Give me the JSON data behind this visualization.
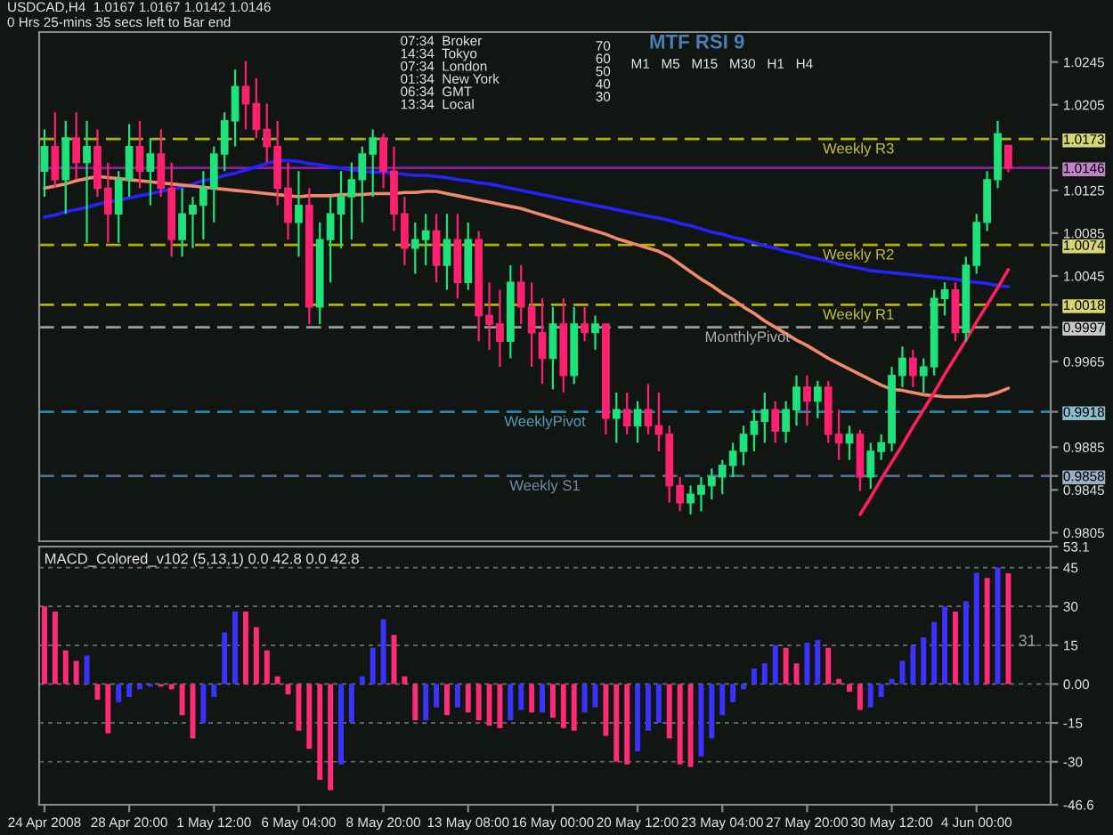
{
  "chart_data": [
    {
      "type": "candlestick",
      "title": "USDCAD,H4  1.0167 1.0167 1.0142 1.0146",
      "subtitle": "0 Hrs 25-mins 35 secs left to Bar end",
      "categories": [
        null,
        null,
        null,
        null,
        null,
        null,
        null,
        null,
        null,
        null,
        null,
        null,
        null,
        null,
        null,
        null,
        null,
        null,
        null,
        null,
        null,
        null,
        null,
        null,
        null,
        null,
        null,
        null,
        null,
        null,
        null,
        null,
        null,
        null,
        null,
        null,
        null,
        null,
        null,
        null,
        null,
        null,
        null,
        null,
        null,
        null,
        null,
        null,
        null,
        null,
        null,
        null,
        null,
        null,
        null,
        null,
        null,
        null,
        null,
        null,
        null,
        null,
        null,
        null,
        null,
        null,
        null,
        null,
        null,
        null,
        null,
        null,
        null,
        null,
        null,
        null,
        null,
        null,
        null,
        null,
        null,
        null,
        null,
        null,
        null,
        null,
        null,
        null,
        null,
        null,
        null,
        null
      ],
      "ohlc": [
        [
          1.0143,
          1.0182,
          1.0119,
          1.0166
        ],
        [
          1.0166,
          1.0198,
          1.0127,
          1.0135
        ],
        [
          1.0135,
          1.019,
          1.0103,
          1.0174
        ],
        [
          1.0174,
          1.0198,
          1.0135,
          1.0151
        ],
        [
          1.0151,
          1.019,
          1.0076,
          1.0166
        ],
        [
          1.0166,
          1.0182,
          1.0119,
          1.0127
        ],
        [
          1.0127,
          1.0151,
          1.0076,
          1.0103
        ],
        [
          1.0103,
          1.0143,
          1.0076,
          1.0135
        ],
        [
          1.0135,
          1.0187,
          1.0119,
          1.0166
        ],
        [
          1.0166,
          1.019,
          1.0127,
          1.0143
        ],
        [
          1.0143,
          1.0174,
          1.0111,
          1.0159
        ],
        [
          1.0159,
          1.0182,
          1.0119,
          1.0127
        ],
        [
          1.0127,
          1.0151,
          1.0063,
          1.0079
        ],
        [
          1.0079,
          1.0127,
          1.0063,
          1.0103
        ],
        [
          1.0103,
          1.0119,
          1.0071,
          1.0111
        ],
        [
          1.0111,
          1.0143,
          1.0079,
          1.0127
        ],
        [
          1.0127,
          1.0166,
          1.0095,
          1.0159
        ],
        [
          1.0159,
          1.0198,
          1.0143,
          1.019
        ],
        [
          1.019,
          1.0238,
          1.0166,
          1.0222
        ],
        [
          1.0222,
          1.0246,
          1.0182,
          1.0206
        ],
        [
          1.0206,
          1.023,
          1.0174,
          1.0182
        ],
        [
          1.0182,
          1.0206,
          1.0151,
          1.0166
        ],
        [
          1.0166,
          1.019,
          1.0111,
          1.0127
        ],
        [
          1.0127,
          1.0151,
          1.0079,
          1.0095
        ],
        [
          1.0095,
          1.0143,
          1.0063,
          1.0111
        ],
        [
          1.0111,
          1.0127,
          1.0,
          1.0016
        ],
        [
          1.0016,
          1.0095,
          1.0,
          1.0079
        ],
        [
          1.0079,
          1.0119,
          1.0039,
          1.0103
        ],
        [
          1.0103,
          1.0143,
          1.0071,
          1.0119
        ],
        [
          1.0119,
          1.0151,
          1.0079,
          1.0135
        ],
        [
          1.0135,
          1.0166,
          1.0095,
          1.0159
        ],
        [
          1.0159,
          1.0182,
          1.0119,
          1.0174
        ],
        [
          1.0174,
          1.0178,
          1.0127,
          1.0143
        ],
        [
          1.0143,
          1.0166,
          1.0087,
          1.0103
        ],
        [
          1.0103,
          1.0119,
          1.0055,
          1.0071
        ],
        [
          1.0071,
          1.0095,
          1.0047,
          1.0079
        ],
        [
          1.0079,
          1.0103,
          1.0055,
          1.0087
        ],
        [
          1.0087,
          1.0103,
          1.0039,
          1.0055
        ],
        [
          1.0055,
          1.0103,
          1.0032,
          1.0079
        ],
        [
          1.0079,
          1.0103,
          1.0024,
          1.0039
        ],
        [
          1.0039,
          1.0095,
          1.0032,
          1.0079
        ],
        [
          1.0079,
          1.0087,
          0.9984,
          1.0008
        ],
        [
          1.0008,
          1.0039,
          0.9976,
          1.0
        ],
        [
          1.0,
          1.0032,
          0.996,
          0.9984
        ],
        [
          0.9984,
          1.0055,
          0.9968,
          1.0039
        ],
        [
          1.0039,
          1.0055,
          1.0,
          1.0016
        ],
        [
          1.0016,
          1.0039,
          0.996,
          0.9992
        ],
        [
          0.9992,
          1.0024,
          0.9944,
          0.9968
        ],
        [
          0.9968,
          1.0016,
          0.9939,
          1.0
        ],
        [
          1.0,
          1.0024,
          0.9936,
          0.9952
        ],
        [
          0.9952,
          1.0016,
          0.9944,
          1.0
        ],
        [
          1.0,
          1.0016,
          0.9984,
          0.9992
        ],
        [
          0.9992,
          1.0008,
          0.9976,
          1.0
        ],
        [
          1.0,
          1.0,
          0.9897,
          0.9912
        ],
        [
          0.9912,
          0.9936,
          0.9889,
          0.992
        ],
        [
          0.992,
          0.9936,
          0.9897,
          0.9905
        ],
        [
          0.9905,
          0.9928,
          0.9889,
          0.992
        ],
        [
          0.992,
          0.9944,
          0.9897,
          0.9905
        ],
        [
          0.9905,
          0.9936,
          0.9881,
          0.9897
        ],
        [
          0.9897,
          0.9905,
          0.9833,
          0.9849
        ],
        [
          0.9849,
          0.9857,
          0.9825,
          0.9833
        ],
        [
          0.9833,
          0.9849,
          0.9822,
          0.9841
        ],
        [
          0.9841,
          0.9857,
          0.9825,
          0.9849
        ],
        [
          0.9849,
          0.9865,
          0.9836,
          0.9857
        ],
        [
          0.9857,
          0.9873,
          0.9841,
          0.9868
        ],
        [
          0.9868,
          0.9889,
          0.9857,
          0.9881
        ],
        [
          0.9881,
          0.9905,
          0.9868,
          0.9897
        ],
        [
          0.9897,
          0.992,
          0.9881,
          0.9909
        ],
        [
          0.9909,
          0.9936,
          0.9889,
          0.992
        ],
        [
          0.992,
          0.9928,
          0.9889,
          0.99
        ],
        [
          0.99,
          0.9928,
          0.9889,
          0.992
        ],
        [
          0.992,
          0.9952,
          0.9905,
          0.9941
        ],
        [
          0.9941,
          0.9952,
          0.9905,
          0.9928
        ],
        [
          0.9928,
          0.9947,
          0.9912,
          0.9941
        ],
        [
          0.9941,
          0.9947,
          0.9889,
          0.9897
        ],
        [
          0.9897,
          0.992,
          0.9873,
          0.9889
        ],
        [
          0.9889,
          0.9905,
          0.9873,
          0.9897
        ],
        [
          0.9897,
          0.9901,
          0.9844,
          0.9857
        ],
        [
          0.9857,
          0.9889,
          0.9846,
          0.9881
        ],
        [
          0.9881,
          0.9897,
          0.9873,
          0.9889
        ],
        [
          0.9889,
          0.996,
          0.9881,
          0.9952
        ],
        [
          0.9952,
          0.9979,
          0.9941,
          0.9968
        ],
        [
          0.9968,
          0.9976,
          0.9941,
          0.9952
        ],
        [
          0.9952,
          0.9968,
          0.9936,
          0.996
        ],
        [
          0.996,
          1.0032,
          0.9952,
          1.0024
        ],
        [
          1.0024,
          1.0039,
          1.0008,
          1.0032
        ],
        [
          1.0032,
          1.0039,
          0.9984,
          0.9992
        ],
        [
          0.9992,
          1.0063,
          0.9984,
          1.0055
        ],
        [
          1.0055,
          1.0103,
          1.0047,
          1.0095
        ],
        [
          1.0095,
          1.0143,
          1.0087,
          1.0135
        ],
        [
          1.0135,
          1.019,
          1.0127,
          1.0178
        ],
        [
          1.0167,
          1.0167,
          1.0142,
          1.0146
        ]
      ],
      "colors": [
        "#1ee27a",
        "#ff2070",
        "#1ee27a",
        "#ff2070",
        "#1ee27a",
        "#ff2070",
        "#ff2070",
        "#1ee27a",
        "#1ee27a",
        "#ff2070",
        "#1ee27a",
        "#ff2070",
        "#ff2070",
        "#1ee27a",
        "#1ee27a",
        "#1ee27a",
        "#1ee27a",
        "#1ee27a",
        "#1ee27a",
        "#ff2070",
        "#ff2070",
        "#ff2070",
        "#ff2070",
        "#ff2070",
        "#1ee27a",
        "#ff2070",
        "#1ee27a",
        "#1ee27a",
        "#1ee27a",
        "#1ee27a",
        "#1ee27a",
        "#1ee27a",
        "#ff2070",
        "#ff2070",
        "#ff2070",
        "#1ee27a",
        "#1ee27a",
        "#ff2070",
        "#1ee27a",
        "#ff2070",
        "#1ee27a",
        "#ff2070",
        "#ff2070",
        "#ff2070",
        "#1ee27a",
        "#ff2070",
        "#ff2070",
        "#ff2070",
        "#1ee27a",
        "#ff2070",
        "#1ee27a",
        "#ff2070",
        "#1ee27a",
        "#ff2070",
        "#1ee27a",
        "#ff2070",
        "#1ee27a",
        "#ff2070",
        "#ff2070",
        "#ff2070",
        "#ff2070",
        "#1ee27a",
        "#1ee27a",
        "#1ee27a",
        "#1ee27a",
        "#1ee27a",
        "#1ee27a",
        "#1ee27a",
        "#1ee27a",
        "#ff2070",
        "#1ee27a",
        "#1ee27a",
        "#ff2070",
        "#1ee27a",
        "#ff2070",
        "#ff2070",
        "#1ee27a",
        "#ff2070",
        "#1ee27a",
        "#1ee27a",
        "#1ee27a",
        "#1ee27a",
        "#ff2070",
        "#1ee27a",
        "#1ee27a",
        "#1ee27a",
        "#ff2070",
        "#1ee27a",
        "#1ee27a",
        "#1ee27a",
        "#1ee27a",
        "#ff2070"
      ],
      "series": [
        {
          "type": "line",
          "color": "#2323ff",
          "values": [
            1.01,
            1.0102,
            1.0105,
            1.0107,
            1.0109,
            1.0112,
            1.0114,
            1.0116,
            1.0118,
            1.012,
            1.0122,
            1.0124,
            1.0126,
            1.0128,
            1.0131,
            1.0134,
            1.0136,
            1.0139,
            1.0141,
            1.0144,
            1.0147,
            1.015,
            1.0153,
            1.0153,
            1.0152,
            1.015,
            1.0149,
            1.0147,
            1.0146,
            1.0144,
            1.0143,
            1.0142,
            1.0142,
            1.0141,
            1.014,
            1.0139,
            1.0139,
            1.0138,
            1.0137,
            1.0135,
            1.0134,
            1.0132,
            1.0131,
            1.0129,
            1.0127,
            1.0125,
            1.0123,
            1.0121,
            1.0119,
            1.0117,
            1.0115,
            1.0113,
            1.0111,
            1.0109,
            1.0107,
            1.0105,
            1.0103,
            1.0101,
            1.0099,
            1.0097,
            1.0094,
            1.0092,
            1.0089,
            1.0086,
            1.0084,
            1.0081,
            1.0079,
            1.0076,
            1.0073,
            1.0071,
            1.0068,
            1.0066,
            1.0063,
            1.0061,
            1.0059,
            1.0056,
            1.0054,
            1.0052,
            1.005,
            1.0049,
            1.0048,
            1.0047,
            1.0046,
            1.0045,
            1.0044,
            1.0043,
            1.0042,
            1.004,
            1.0039,
            1.0038,
            1.0036,
            1.0035
          ]
        },
        {
          "type": "line",
          "color": "#f08a6a",
          "values": [
            1.0127,
            1.0129,
            1.0131,
            1.0134,
            1.0136,
            1.0138,
            1.0137,
            1.0136,
            1.0135,
            1.0134,
            1.0133,
            1.0132,
            1.0131,
            1.013,
            1.0129,
            1.0128,
            1.0127,
            1.0126,
            1.0125,
            1.0124,
            1.0123,
            1.0122,
            1.0121,
            1.012,
            1.0119,
            1.012,
            1.012,
            1.012,
            1.0121,
            1.0121,
            1.0121,
            1.0122,
            1.0122,
            1.0122,
            1.0123,
            1.0123,
            1.0124,
            1.0124,
            1.0122,
            1.012,
            1.0118,
            1.0116,
            1.0114,
            1.0112,
            1.011,
            1.0108,
            1.0105,
            1.0102,
            1.0099,
            1.0096,
            1.0093,
            1.009,
            1.0087,
            1.0084,
            1.008,
            1.0077,
            1.0074,
            1.0071,
            1.0068,
            1.0063,
            1.0056,
            1.0049,
            1.0042,
            1.0036,
            1.0029,
            1.0023,
            1.0016,
            1.001,
            1.0003,
            0.9997,
            0.9991,
            0.9985,
            0.998,
            0.9974,
            0.9968,
            0.9963,
            0.9958,
            0.9953,
            0.9948,
            0.9943,
            0.9939,
            0.9938,
            0.9936,
            0.9934,
            0.9933,
            0.9932,
            0.9932,
            0.9932,
            0.9933,
            0.9933,
            0.9936,
            0.994
          ]
        },
        {
          "type": "line",
          "color": "#ff1f5a",
          "values": [
            null,
            null,
            null,
            null,
            null,
            null,
            null,
            null,
            null,
            null,
            null,
            null,
            null,
            null,
            null,
            null,
            null,
            null,
            null,
            null,
            null,
            null,
            null,
            null,
            null,
            null,
            null,
            null,
            null,
            null,
            null,
            null,
            null,
            null,
            null,
            null,
            null,
            null,
            null,
            null,
            null,
            null,
            null,
            null,
            null,
            null,
            null,
            null,
            null,
            null,
            null,
            null,
            null,
            null,
            null,
            null,
            null,
            null,
            null,
            null,
            null,
            null,
            null,
            null,
            null,
            null,
            null,
            null,
            null,
            null,
            null,
            null,
            null,
            null,
            null,
            null,
            null,
            0.9822,
            0.9838,
            0.9855,
            0.9871,
            0.9887,
            0.9904,
            0.992,
            0.9936,
            0.9953,
            0.9969,
            0.9985,
            1.0002,
            1.0018,
            1.0034,
            1.0051
          ]
        }
      ],
      "ref_lines": [
        {
          "axis": "y",
          "value": 1.0173,
          "label": "Weekly R3",
          "color": "#b4b400",
          "line_style": "dashed"
        },
        {
          "axis": "y",
          "value": 1.0146,
          "color": "#8a1f9a",
          "line_style": "solid"
        },
        {
          "axis": "y",
          "value": 1.0074,
          "label": "Weekly R2",
          "color": "#b4b400",
          "line_style": "dashed"
        },
        {
          "axis": "y",
          "value": 1.0018,
          "label": "Weekly R1",
          "color": "#b4b400",
          "line_style": "dashed"
        },
        {
          "axis": "y",
          "value": 0.9997,
          "label": "MonthlyPivot",
          "color": "#9c9c9c",
          "line_style": "dashed"
        },
        {
          "axis": "y",
          "value": 0.9918,
          "label": "WeeklyPivot",
          "color": "#2e86a6",
          "line_style": "dashed"
        },
        {
          "axis": "y",
          "value": 0.9858,
          "label": "Weekly S1",
          "color": "#4d6f92",
          "line_style": "dashed"
        }
      ],
      "annotations": [
        "07:34  Broker\n14:34  Tokyo\n07:34  London\n01:34  New York\n06:34  GMT\n13:34  Local",
        "MTF RSI 9",
        "M1   M5   M15   M30   H1   H4",
        "70\n60\n50\n40\n30"
      ],
      "ylim": [
        0.9797,
        1.0273
      ],
      "yticks": [
        0.9805,
        0.9845,
        0.9858,
        0.9885,
        0.9918,
        0.9965,
        0.9997,
        1.0018,
        1.0045,
        1.0074,
        1.0085,
        1.0125,
        1.0146,
        1.0173,
        1.0205,
        1.0245
      ],
      "tick_labels": "y"
    },
    {
      "type": "bar",
      "title": "MACD_Colored_v102 (5,13,1) 0.0 42.8 0.0 42.8",
      "categories": [
        "24 Apr 2008",
        null,
        null,
        null,
        null,
        null,
        null,
        null,
        "28 Apr 20:00",
        null,
        null,
        null,
        null,
        null,
        null,
        null,
        "1 May 12:00",
        null,
        null,
        null,
        null,
        null,
        null,
        null,
        "6 May 04:00",
        null,
        null,
        null,
        null,
        null,
        null,
        null,
        "8 May 20:00",
        null,
        null,
        null,
        null,
        null,
        null,
        null,
        "13 May 08:00",
        null,
        null,
        null,
        null,
        null,
        null,
        null,
        "16 May 00:00",
        null,
        null,
        null,
        null,
        null,
        null,
        null,
        "20 May 12:00",
        null,
        null,
        null,
        null,
        null,
        null,
        null,
        "23 May 04:00",
        null,
        null,
        null,
        null,
        null,
        null,
        null,
        "27 May 20:00",
        null,
        null,
        null,
        null,
        null,
        null,
        null,
        "30 May 12:00",
        null,
        null,
        null,
        null,
        null,
        null,
        null,
        "4 Jun 00:00",
        null,
        null,
        null
      ],
      "values": [
        30,
        28,
        13,
        9,
        11,
        -6,
        -19,
        -7,
        -5,
        -2,
        -1,
        -1,
        -2,
        -12,
        -21,
        -15,
        -5,
        20,
        28,
        28,
        22,
        13,
        3,
        -4,
        -18,
        -25,
        -37,
        -41,
        -31,
        -15,
        3,
        14,
        25,
        19,
        3,
        -14,
        -14,
        -9,
        -12,
        -9,
        -11,
        -14,
        -16,
        -17,
        -14,
        -10,
        -11,
        -11,
        -13,
        -17,
        -18,
        -11,
        -9,
        -20,
        -30,
        -31,
        -26,
        -18,
        -15,
        -21,
        -31,
        -32,
        -28,
        -21,
        -12,
        -7,
        -2,
        6,
        8,
        15,
        14,
        8,
        16,
        17,
        14,
        2,
        -3,
        -10,
        -9,
        -5,
        2,
        9,
        15,
        18,
        24,
        30,
        28,
        32,
        43,
        41,
        45,
        42.8
      ],
      "colors": [
        "#ff2a78",
        "#ff2a78",
        "#ff2a78",
        "#ff2a78",
        "#3a33ff",
        "#ff2a78",
        "#ff2a78",
        "#3a33ff",
        "#3a33ff",
        "#3a33ff",
        "#3a33ff",
        "#ff2a78",
        "#ff2a78",
        "#ff2a78",
        "#ff2a78",
        "#3a33ff",
        "#3a33ff",
        "#3a33ff",
        "#3a33ff",
        "#ff2a78",
        "#ff2a78",
        "#ff2a78",
        "#ff2a78",
        "#ff2a78",
        "#ff2a78",
        "#ff2a78",
        "#ff2a78",
        "#ff2a78",
        "#3a33ff",
        "#3a33ff",
        "#3a33ff",
        "#3a33ff",
        "#3a33ff",
        "#ff2a78",
        "#ff2a78",
        "#ff2a78",
        "#3a33ff",
        "#3a33ff",
        "#ff2a78",
        "#3a33ff",
        "#ff2a78",
        "#ff2a78",
        "#ff2a78",
        "#ff2a78",
        "#3a33ff",
        "#3a33ff",
        "#ff2a78",
        "#3a33ff",
        "#ff2a78",
        "#ff2a78",
        "#ff2a78",
        "#3a33ff",
        "#3a33ff",
        "#ff2a78",
        "#ff2a78",
        "#ff2a78",
        "#3a33ff",
        "#3a33ff",
        "#3a33ff",
        "#ff2a78",
        "#ff2a78",
        "#ff2a78",
        "#3a33ff",
        "#3a33ff",
        "#3a33ff",
        "#3a33ff",
        "#3a33ff",
        "#3a33ff",
        "#3a33ff",
        "#3a33ff",
        "#ff2a78",
        "#ff2a78",
        "#3a33ff",
        "#3a33ff",
        "#ff2a78",
        "#ff2a78",
        "#ff2a78",
        "#ff2a78",
        "#3a33ff",
        "#3a33ff",
        "#3a33ff",
        "#3a33ff",
        "#3a33ff",
        "#3a33ff",
        "#3a33ff",
        "#3a33ff",
        "#ff2a78",
        "#3a33ff",
        "#3a33ff",
        "#ff2a78",
        "#3a33ff",
        "#ff2a78"
      ],
      "annotations": [
        "31"
      ],
      "ylim": [
        -46.6,
        53.1
      ],
      "yticks": [
        -46.6,
        -30,
        -15,
        {
          "value": 0,
          "label": "0.00"
        },
        15,
        30,
        45,
        53.1
      ],
      "grid": "y"
    }
  ]
}
